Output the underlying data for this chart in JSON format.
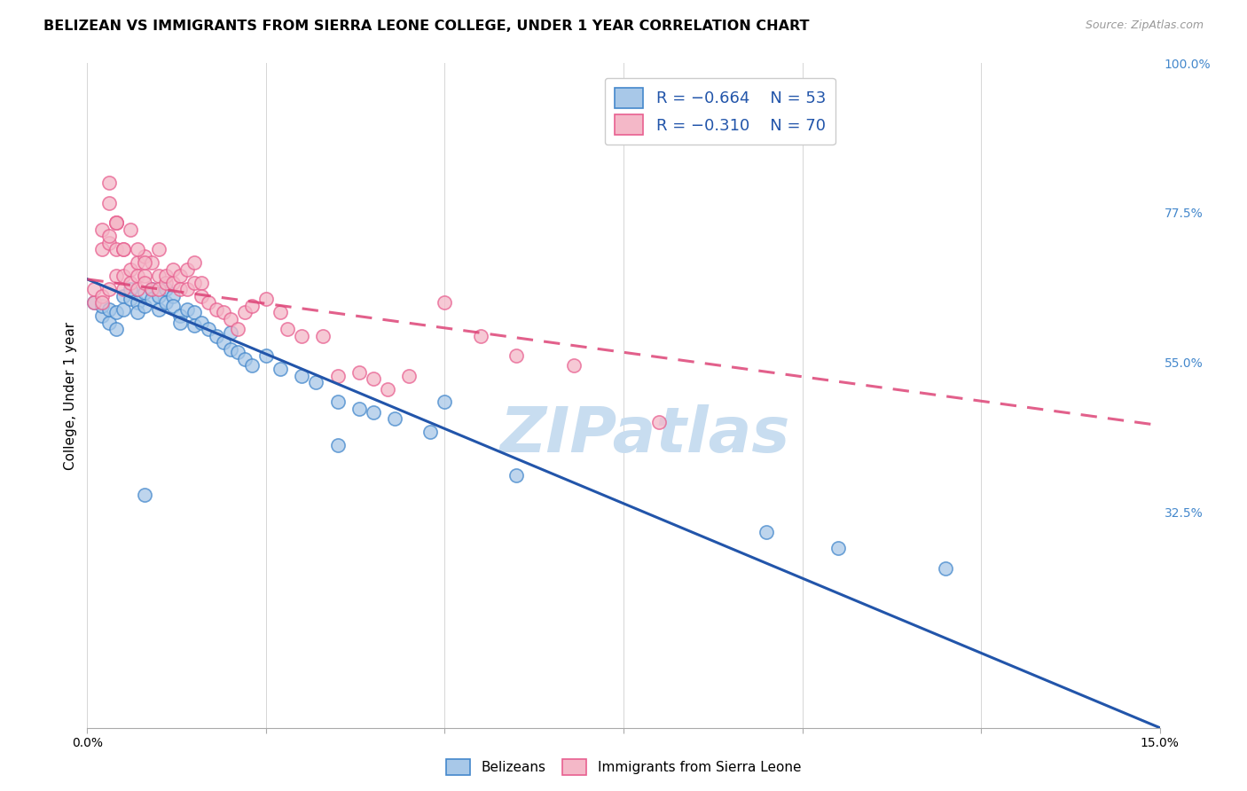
{
  "title": "BELIZEAN VS IMMIGRANTS FROM SIERRA LEONE COLLEGE, UNDER 1 YEAR CORRELATION CHART",
  "source": "Source: ZipAtlas.com",
  "ylabel": "College, Under 1 year",
  "x_min": 0.0,
  "x_max": 0.15,
  "y_min": 0.0,
  "y_max": 1.0,
  "x_ticks": [
    0.0,
    0.025,
    0.05,
    0.075,
    0.1,
    0.125,
    0.15
  ],
  "x_tick_labels": [
    "0.0%",
    "",
    "",
    "",
    "",
    "",
    "15.0%"
  ],
  "y_ticks_right": [
    0.0,
    0.325,
    0.55,
    0.775,
    1.0
  ],
  "y_tick_labels_right": [
    "",
    "32.5%",
    "55.0%",
    "77.5%",
    "100.0%"
  ],
  "color_blue": "#a8c8e8",
  "color_pink": "#f4b8c8",
  "color_blue_edge": "#4488cc",
  "color_pink_edge": "#e86090",
  "color_blue_line": "#2255aa",
  "color_pink_line": "#dd4477",
  "watermark_text": "ZIPatlas",
  "watermark_color": "#c8ddf0",
  "blue_line_x0": 0.0,
  "blue_line_y0": 0.675,
  "blue_line_x1": 0.15,
  "blue_line_y1": 0.0,
  "pink_line_x0": 0.0,
  "pink_line_y0": 0.675,
  "pink_line_x1": 0.15,
  "pink_line_y1": 0.455,
  "blue_scatter_x": [
    0.001,
    0.002,
    0.002,
    0.003,
    0.003,
    0.004,
    0.004,
    0.005,
    0.005,
    0.006,
    0.006,
    0.007,
    0.007,
    0.008,
    0.008,
    0.009,
    0.009,
    0.01,
    0.01,
    0.011,
    0.011,
    0.012,
    0.012,
    0.013,
    0.013,
    0.014,
    0.015,
    0.015,
    0.016,
    0.017,
    0.018,
    0.019,
    0.02,
    0.02,
    0.021,
    0.022,
    0.023,
    0.025,
    0.027,
    0.03,
    0.032,
    0.035,
    0.038,
    0.04,
    0.043,
    0.048,
    0.05,
    0.06,
    0.095,
    0.105,
    0.12,
    0.008,
    0.035
  ],
  "blue_scatter_y": [
    0.64,
    0.62,
    0.635,
    0.61,
    0.63,
    0.6,
    0.625,
    0.65,
    0.63,
    0.645,
    0.66,
    0.64,
    0.625,
    0.655,
    0.635,
    0.66,
    0.645,
    0.63,
    0.65,
    0.66,
    0.64,
    0.65,
    0.635,
    0.62,
    0.61,
    0.63,
    0.625,
    0.605,
    0.61,
    0.6,
    0.59,
    0.58,
    0.595,
    0.57,
    0.565,
    0.555,
    0.545,
    0.56,
    0.54,
    0.53,
    0.52,
    0.49,
    0.48,
    0.475,
    0.465,
    0.445,
    0.49,
    0.38,
    0.295,
    0.27,
    0.24,
    0.35,
    0.425
  ],
  "pink_scatter_x": [
    0.001,
    0.001,
    0.002,
    0.002,
    0.003,
    0.003,
    0.003,
    0.004,
    0.004,
    0.004,
    0.005,
    0.005,
    0.005,
    0.006,
    0.006,
    0.007,
    0.007,
    0.007,
    0.008,
    0.008,
    0.008,
    0.009,
    0.009,
    0.01,
    0.01,
    0.01,
    0.011,
    0.011,
    0.012,
    0.012,
    0.013,
    0.013,
    0.014,
    0.014,
    0.015,
    0.015,
    0.016,
    0.016,
    0.017,
    0.018,
    0.019,
    0.02,
    0.021,
    0.022,
    0.023,
    0.025,
    0.027,
    0.028,
    0.03,
    0.033,
    0.035,
    0.038,
    0.04,
    0.042,
    0.045,
    0.05,
    0.055,
    0.06,
    0.068,
    0.08,
    0.002,
    0.003,
    0.004,
    0.005,
    0.006,
    0.007,
    0.008,
    0.002,
    0.003,
    0.004
  ],
  "pink_scatter_y": [
    0.64,
    0.66,
    0.65,
    0.72,
    0.73,
    0.79,
    0.66,
    0.76,
    0.68,
    0.72,
    0.66,
    0.68,
    0.72,
    0.69,
    0.67,
    0.7,
    0.68,
    0.66,
    0.68,
    0.67,
    0.71,
    0.66,
    0.7,
    0.68,
    0.66,
    0.72,
    0.67,
    0.68,
    0.67,
    0.69,
    0.68,
    0.66,
    0.69,
    0.66,
    0.7,
    0.67,
    0.67,
    0.65,
    0.64,
    0.63,
    0.625,
    0.615,
    0.6,
    0.625,
    0.635,
    0.645,
    0.625,
    0.6,
    0.59,
    0.59,
    0.53,
    0.535,
    0.525,
    0.51,
    0.53,
    0.64,
    0.59,
    0.56,
    0.545,
    0.46,
    0.75,
    0.74,
    0.76,
    0.72,
    0.75,
    0.72,
    0.7,
    0.64,
    0.82,
    0.76
  ],
  "background_color": "#ffffff",
  "grid_color": "#cccccc",
  "title_fontsize": 11.5,
  "axis_label_fontsize": 11,
  "tick_fontsize": 10,
  "legend_fontsize": 13,
  "watermark_fontsize": 52
}
